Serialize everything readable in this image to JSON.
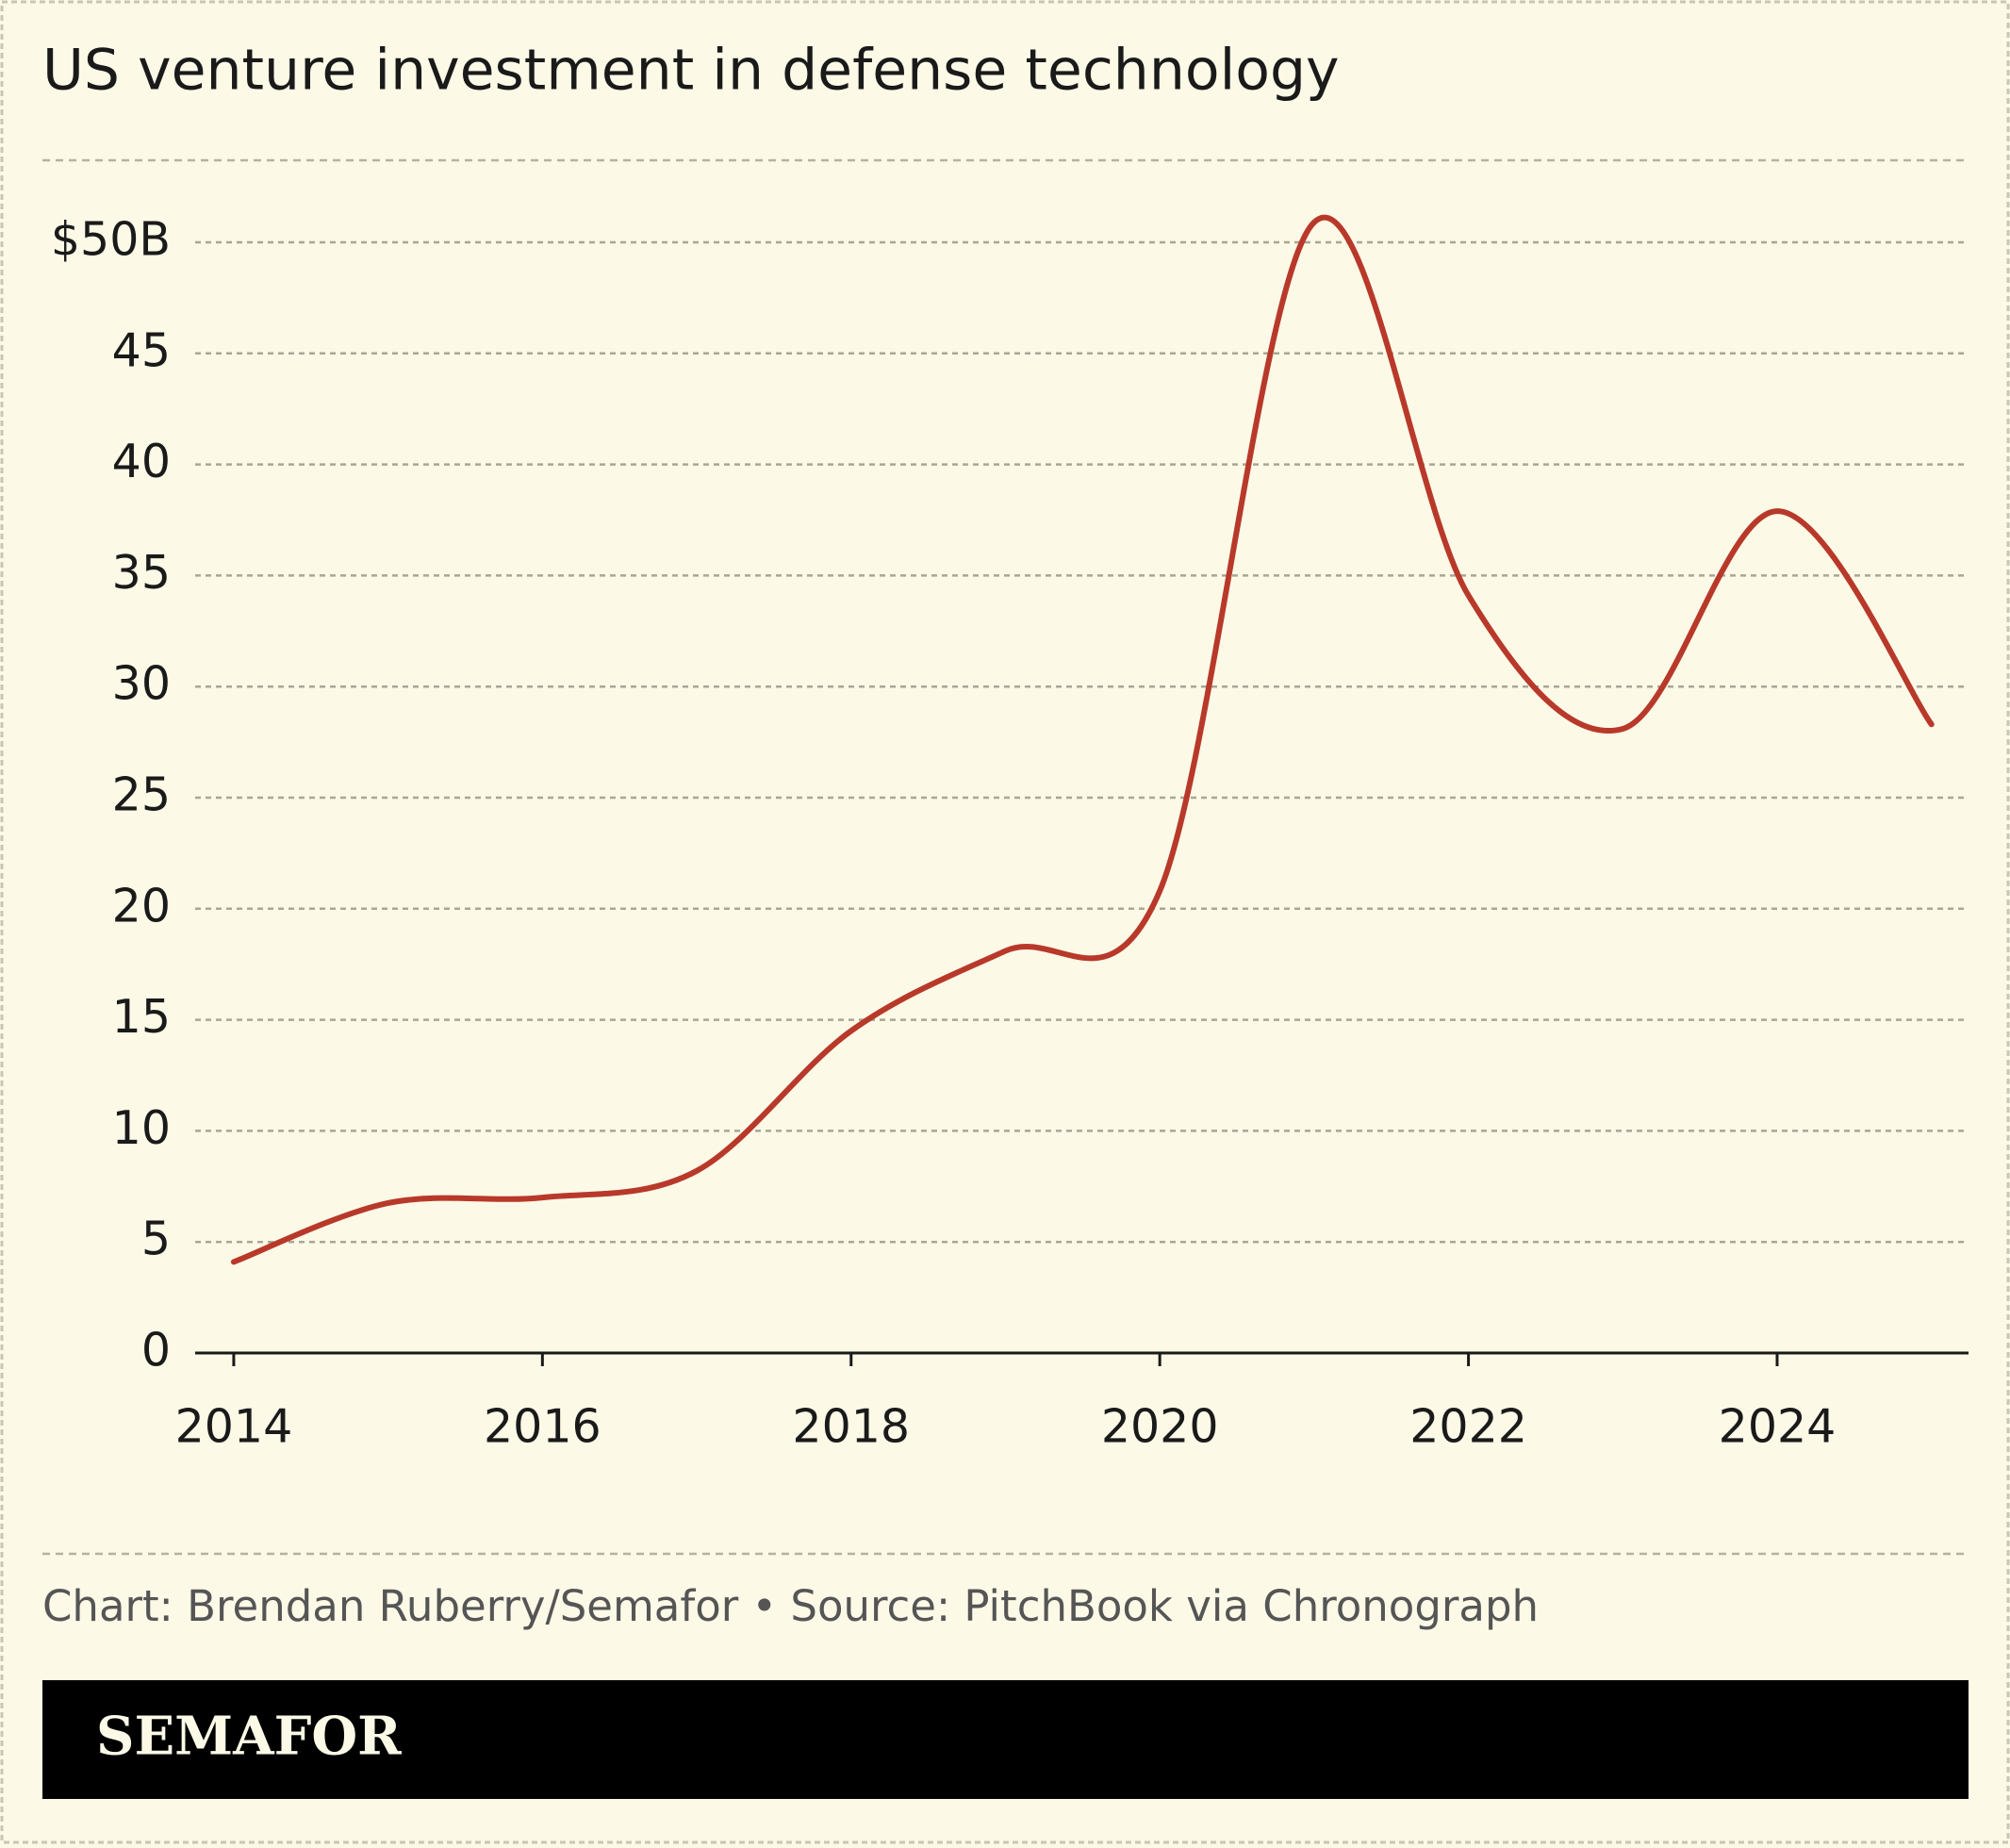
{
  "chart_data": {
    "type": "line",
    "title": "US venture investment in defense technology",
    "source": "Chart: Brendan Ruberry/Semafor • Source: PitchBook via Chronograph",
    "brand": "SEMAFOR",
    "x": [
      2014,
      2015,
      2016,
      2017,
      2018,
      2019,
      2020,
      2021,
      2022,
      2023,
      2024,
      2025
    ],
    "values": [
      4.1,
      6.75,
      7.0,
      8.2,
      14.5,
      18.1,
      20.8,
      50.9,
      34.1,
      28.1,
      37.9,
      28.3
    ],
    "color": "#b8392a",
    "xlim": [
      2013.75,
      2025.24
    ],
    "xticks": [
      2014,
      2016,
      2018,
      2020,
      2022,
      2024
    ],
    "ylim": [
      0,
      50
    ],
    "yticks": [
      0,
      5,
      10,
      15,
      20,
      25,
      30,
      35,
      40,
      45,
      {
        "value": 50,
        "label": "$50B"
      }
    ],
    "grid": true
  }
}
